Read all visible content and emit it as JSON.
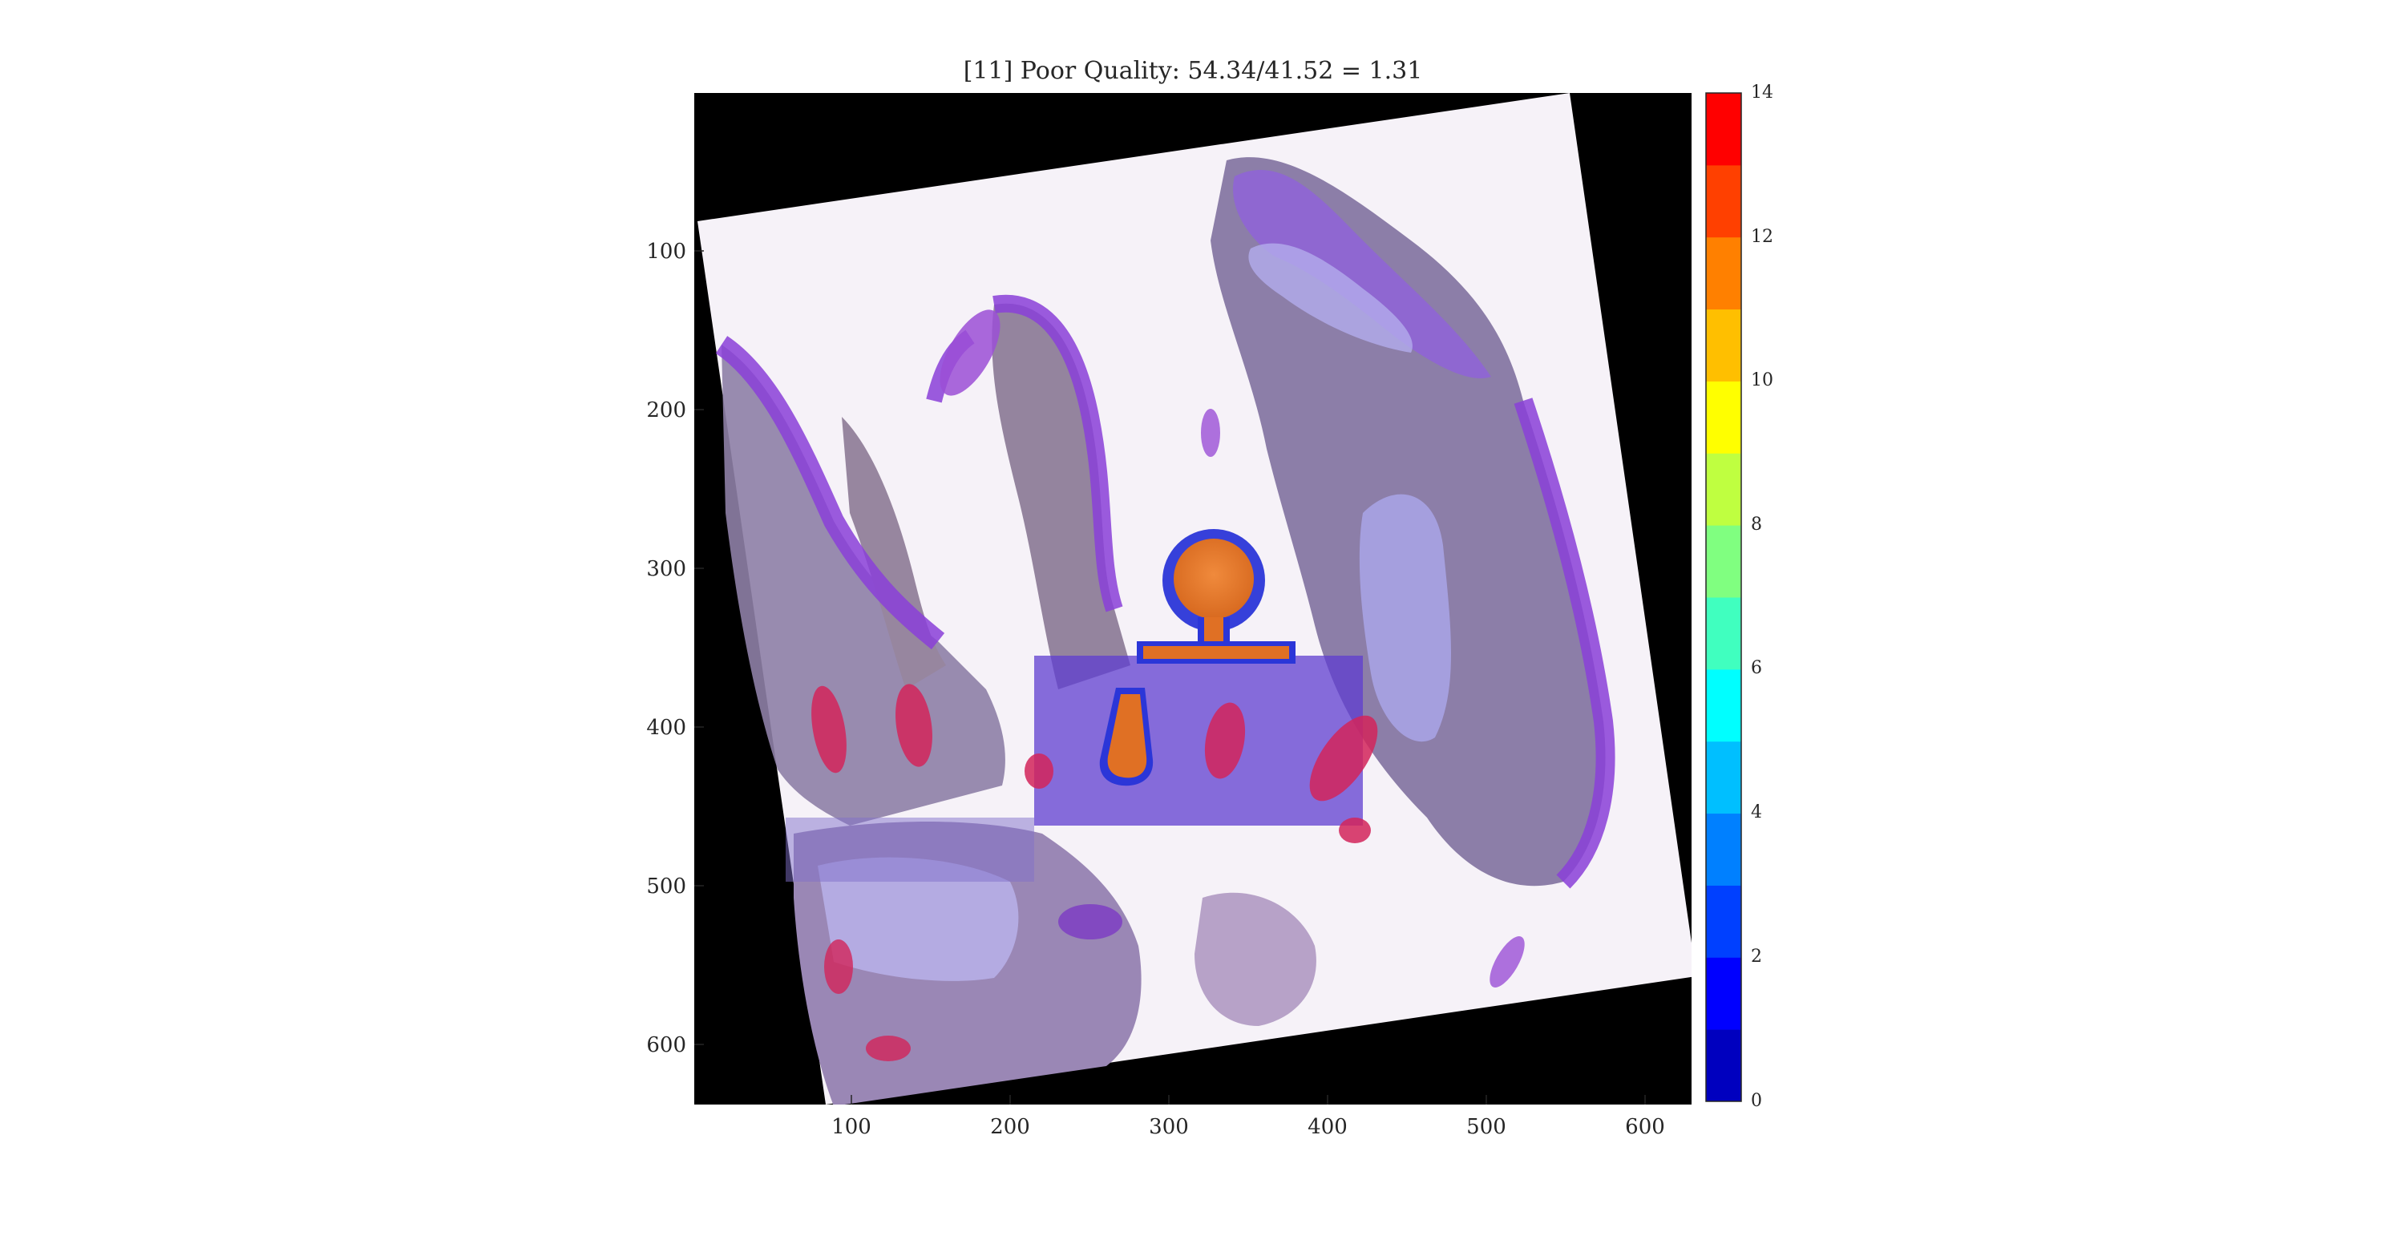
{
  "figure": {
    "title": "[11] Poor Quality: 54.34/41.52 = 1.31"
  },
  "axes": {
    "x_ticks": [
      "100",
      "200",
      "300",
      "400",
      "500",
      "600"
    ],
    "y_ticks": [
      "100",
      "200",
      "300",
      "400",
      "500",
      "600"
    ]
  },
  "colorbar": {
    "ticks": [
      "0",
      "2",
      "4",
      "6",
      "8",
      "10",
      "12",
      "14"
    ],
    "colors": [
      "#0000bf",
      "#0000ff",
      "#0040ff",
      "#0080ff",
      "#00bfff",
      "#00ffff",
      "#40ffbf",
      "#80ff80",
      "#bfff40",
      "#ffff00",
      "#ffbf00",
      "#ff8000",
      "#ff4000",
      "#ff0000"
    ]
  },
  "image": {
    "description_icon": "microscopy-tissue-overlay"
  }
}
